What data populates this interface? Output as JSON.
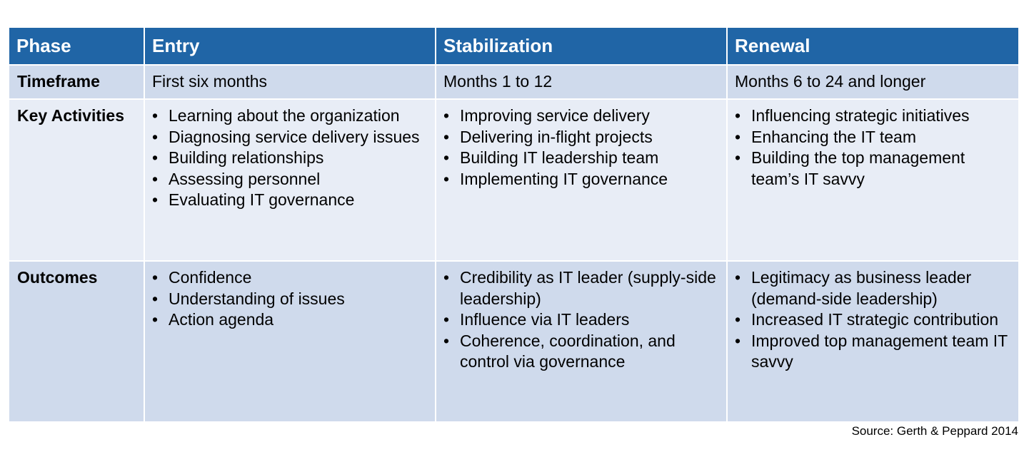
{
  "table": {
    "headers": [
      "Phase",
      "Entry",
      "Stabilization",
      "Renewal"
    ],
    "rows": {
      "timeframe": {
        "label": "Timeframe",
        "entry": "First six months",
        "stabilization": "Months 1 to 12",
        "renewal": "Months 6 to 24 and longer"
      },
      "key_activities": {
        "label": "Key Activities",
        "entry": [
          "Learning about the organization",
          "Diagnosing service delivery issues",
          "Building relationships",
          "Assessing personnel",
          "Evaluating IT governance"
        ],
        "stabilization": [
          "Improving service delivery",
          "Delivering in-flight projects",
          "Building IT leadership team",
          "Implementing IT governance"
        ],
        "renewal": [
          "Influencing strategic initiatives",
          "Enhancing the IT team",
          "Building the top management team’s IT savvy"
        ]
      },
      "outcomes": {
        "label": "Outcomes",
        "entry": [
          "Confidence",
          "Understanding of issues",
          "Action agenda"
        ],
        "stabilization": [
          "Credibility as IT leader (supply-side leadership)",
          "Influence via IT leaders",
          "Coherence, coordination, and control via governance"
        ],
        "renewal": [
          "Legitimacy as business leader (demand-side leadership)",
          "Increased IT strategic contribution",
          "Improved top management team IT savvy"
        ]
      }
    }
  },
  "source": "Source: Gerth & Peppard 2014",
  "bullet_glyph": "•",
  "colors": {
    "header_bg": "#2065a6",
    "header_text": "#ffffff",
    "row_dark_bg": "#cfdaec",
    "row_light_bg": "#e8edf6",
    "body_text": "#000000"
  }
}
